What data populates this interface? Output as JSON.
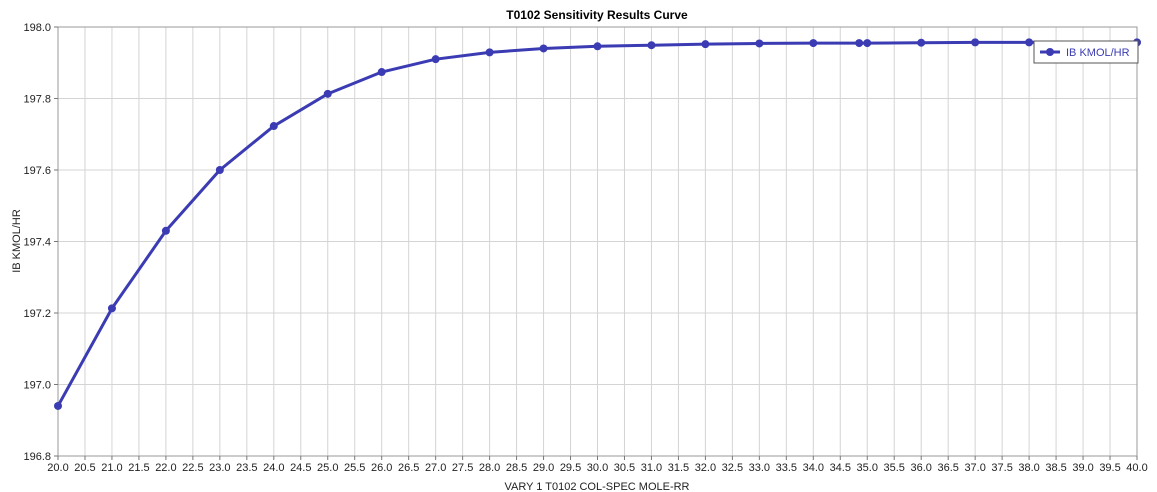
{
  "chart_data": {
    "type": "line",
    "title": "T0102 Sensitivity Results Curve",
    "xlabel": "VARY   1 T0102 COL-SPEC MOLE-RR",
    "ylabel": "IB KMOL/HR",
    "xlim": [
      20.0,
      40.0
    ],
    "ylim": [
      196.8,
      198.0
    ],
    "x_tick_step": 0.5,
    "y_tick_step": 0.2,
    "x_tick_decimals": 1,
    "y_tick_decimals": 1,
    "grid": true,
    "legend_position": "top-right",
    "series": [
      {
        "name": "IB KMOL/HR",
        "color": "#3b3bb3",
        "x": [
          20.0,
          21.0,
          22.0,
          23.0,
          24.0,
          25.0,
          26.0,
          27.0,
          28.0,
          29.0,
          30.0,
          31.0,
          32.0,
          33.0,
          34.0,
          34.85,
          35.0,
          36.0,
          37.0,
          38.0,
          40.0
        ],
        "y": [
          196.94,
          197.213,
          197.43,
          197.6,
          197.723,
          197.813,
          197.874,
          197.91,
          197.929,
          197.94,
          197.946,
          197.949,
          197.952,
          197.954,
          197.955,
          197.955,
          197.955,
          197.956,
          197.957,
          197.957,
          197.957
        ]
      }
    ]
  }
}
